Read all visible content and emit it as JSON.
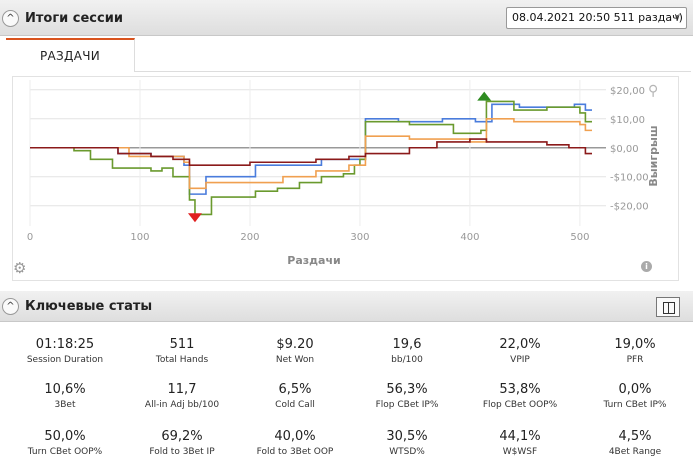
{
  "session": {
    "title": "Итоги сессии",
    "selector_value": "08.04.2021 20:50 511 раздач)"
  },
  "tabs": [
    {
      "label": "РАЗДАЧИ"
    }
  ],
  "chart_data": {
    "type": "line",
    "xlabel": "Раздачи",
    "ylabel": "Выигрыш",
    "xlim": [
      0,
      511
    ],
    "ylim": [
      -27,
      22
    ],
    "x_ticks": [
      0,
      100,
      200,
      300,
      400,
      500
    ],
    "x_tick_labels": [
      "0",
      "100",
      "200",
      "300",
      "400",
      "500"
    ],
    "y_ticks": [
      20,
      10,
      0,
      -10,
      -20
    ],
    "y_tick_labels": [
      "$20,00",
      "$10,00",
      "$0,00",
      "-$10,00",
      "-$20,00"
    ],
    "series": [
      {
        "name": "blue",
        "color": "#4a7cdc",
        "x": [
          0,
          40,
          80,
          110,
          140,
          145,
          155,
          160,
          200,
          205,
          260,
          265,
          300,
          305,
          330,
          335,
          370,
          375,
          400,
          405,
          415,
          420,
          440,
          445,
          490,
          495,
          500,
          505,
          511
        ],
        "y": [
          0,
          0,
          -2,
          -3,
          -6,
          -16,
          -16,
          -10,
          -10,
          -6,
          -6,
          -4,
          -4,
          10,
          10,
          9,
          9,
          10,
          10,
          9,
          9,
          15,
          15,
          14,
          14,
          15,
          15,
          13,
          13
        ]
      },
      {
        "name": "green",
        "color": "#6a9a2e",
        "x": [
          0,
          40,
          50,
          55,
          75,
          110,
          120,
          130,
          140,
          145,
          150,
          155,
          165,
          190,
          205,
          225,
          240,
          245,
          265,
          285,
          295,
          300,
          305,
          345,
          375,
          385,
          410,
          415,
          440,
          470,
          490,
          500,
          505,
          511
        ],
        "y": [
          0,
          -1,
          -1,
          -4,
          -7,
          -8,
          -7,
          -10,
          -10,
          -18,
          -23,
          -23,
          -17,
          -17,
          -15,
          -14,
          -14,
          -12,
          -10,
          -9,
          -6,
          -4,
          9,
          8,
          8,
          5,
          6,
          16,
          13,
          14,
          14,
          12,
          9,
          9
        ]
      },
      {
        "name": "orange",
        "color": "#f0a050",
        "x": [
          0,
          40,
          90,
          110,
          140,
          145,
          155,
          160,
          200,
          230,
          260,
          290,
          305,
          345,
          370,
          400,
          415,
          440,
          470,
          490,
          500,
          505,
          511
        ],
        "y": [
          0,
          0,
          -3,
          -3,
          -5,
          -14,
          -14,
          -12,
          -12,
          -10,
          -8,
          -6,
          4,
          3,
          3,
          2,
          10,
          9,
          9,
          9,
          8,
          6,
          6
        ]
      },
      {
        "name": "dark-red",
        "color": "#8b1a1a",
        "x": [
          0,
          40,
          80,
          110,
          130,
          145,
          155,
          200,
          230,
          260,
          290,
          305,
          345,
          370,
          400,
          415,
          440,
          470,
          490,
          500,
          505,
          511
        ],
        "y": [
          0,
          0,
          -2,
          -3,
          -4,
          -6,
          -6,
          -5,
          -5,
          -4,
          -3,
          -2,
          0,
          2,
          3,
          2,
          2,
          1,
          0,
          0,
          -2,
          -2
        ]
      }
    ],
    "markers": [
      {
        "label": "max",
        "x": 413,
        "y": 18,
        "color": "#2e8b20",
        "direction": "up"
      },
      {
        "label": "min",
        "x": 150,
        "y": -24,
        "color": "#e02020",
        "direction": "down"
      }
    ]
  },
  "stats_section": {
    "title": "Ключевые статы",
    "items": [
      {
        "value": "01:18:25",
        "label": "Session Duration"
      },
      {
        "value": "511",
        "label": "Total Hands"
      },
      {
        "value": "$9.20",
        "label": "Net Won"
      },
      {
        "value": "19,6",
        "label": "bb/100"
      },
      {
        "value": "22,0%",
        "label": "VPIP"
      },
      {
        "value": "19,0%",
        "label": "PFR"
      },
      {
        "value": "10,6%",
        "label": "3Bet"
      },
      {
        "value": "11,7",
        "label": "All-in Adj bb/100"
      },
      {
        "value": "6,5%",
        "label": "Cold Call"
      },
      {
        "value": "56,3%",
        "label": "Flop CBet IP%"
      },
      {
        "value": "53,8%",
        "label": "Flop CBet OOP%"
      },
      {
        "value": "0,0%",
        "label": "Turn CBet IP%"
      },
      {
        "value": "50,0%",
        "label": "Turn CBet OOP%"
      },
      {
        "value": "69,2%",
        "label": "Fold to 3Bet IP"
      },
      {
        "value": "40,0%",
        "label": "Fold to 3Bet OOP"
      },
      {
        "value": "30,5%",
        "label": "WTSD%"
      },
      {
        "value": "44,1%",
        "label": "W$WSF"
      },
      {
        "value": "4,5%",
        "label": "4Bet Range"
      }
    ]
  }
}
